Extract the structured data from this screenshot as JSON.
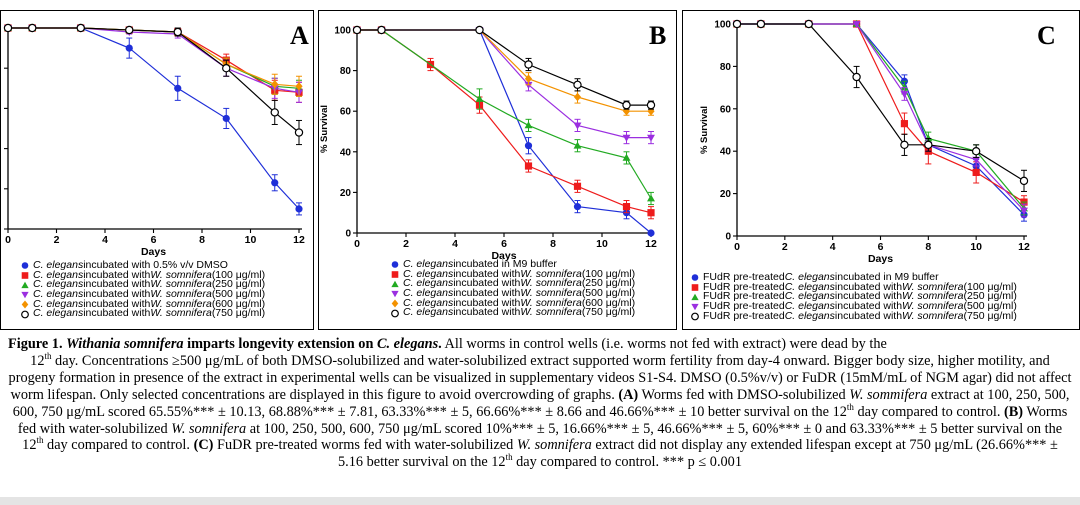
{
  "figure": {
    "chart_data": [
      {
        "type": "line",
        "panel": "A",
        "xlabel": "Days",
        "ylabel": "",
        "xlim": [
          0,
          12
        ],
        "ylim": [
          0,
          100
        ],
        "xticks": [
          "0",
          "2",
          "4",
          "6",
          "8",
          "10",
          "12"
        ],
        "yticks": [],
        "series": [
          {
            "name": "C. elegans incubated with 0.5% v/v DMSO",
            "color": "#1f2fd8",
            "marker": "circle",
            "x": [
              0,
              1,
              3,
              5,
              7,
              9,
              11,
              12
            ],
            "y": [
              100,
              100,
              100,
              90,
              70,
              55,
              23,
              10
            ],
            "err": [
              0,
              0,
              0,
              5,
              6,
              5,
              4,
              3
            ]
          },
          {
            "name": "C. elegans incubated with W. somnifera (100 μg/ml)",
            "color": "#ee1c1c",
            "marker": "square",
            "x": [
              0,
              1,
              3,
              5,
              7,
              9,
              11,
              12
            ],
            "y": [
              100,
              100,
              100,
              99,
              98,
              84,
              69,
              68
            ],
            "err": [
              0,
              0,
              0,
              1,
              2,
              3,
              5,
              5
            ]
          },
          {
            "name": "C. elegans incubated with W. somnifera (250 μg/ml)",
            "color": "#22aa22",
            "marker": "triangle",
            "x": [
              0,
              1,
              3,
              5,
              7,
              9,
              11,
              12
            ],
            "y": [
              100,
              100,
              100,
              99,
              98,
              82,
              71,
              70
            ],
            "err": [
              0,
              0,
              0,
              1,
              1,
              3,
              4,
              4
            ]
          },
          {
            "name": "C. elegans incubated with W. somnifera (500 μg/ml)",
            "color": "#9b2fe0",
            "marker": "tridown",
            "x": [
              0,
              1,
              3,
              5,
              7,
              9,
              11,
              12
            ],
            "y": [
              100,
              100,
              100,
              98,
              97,
              80,
              70,
              68
            ],
            "err": [
              0,
              0,
              0,
              1,
              2,
              4,
              5,
              5
            ]
          },
          {
            "name": "C. elegans incubated with W. somnifera (600 μg/ml)",
            "color": "#f39200",
            "marker": "diamond",
            "x": [
              0,
              1,
              3,
              5,
              7,
              9,
              11,
              12
            ],
            "y": [
              100,
              100,
              100,
              99,
              98,
              82,
              72,
              71
            ],
            "err": [
              0,
              0,
              0,
              1,
              1,
              3,
              5,
              5
            ]
          },
          {
            "name": "C. elegans incubated with W. somnifera (750 μg/ml)",
            "color": "#000000",
            "marker": "circle-open",
            "x": [
              0,
              1,
              3,
              5,
              7,
              9,
              11,
              12
            ],
            "y": [
              100,
              100,
              100,
              99,
              98,
              80,
              58,
              48
            ],
            "err": [
              0,
              0,
              0,
              1,
              2,
              4,
              6,
              6
            ]
          }
        ]
      },
      {
        "type": "line",
        "panel": "B",
        "xlabel": "Days",
        "ylabel": "% Survival",
        "xlim": [
          0,
          12
        ],
        "ylim": [
          0,
          100
        ],
        "xticks": [
          "0",
          "2",
          "4",
          "6",
          "8",
          "10",
          "12"
        ],
        "yticks": [
          "0",
          "20",
          "40",
          "60",
          "80",
          "100"
        ],
        "series": [
          {
            "name": "C. elegans incubated in M9 buffer",
            "color": "#1f2fd8",
            "marker": "circle",
            "x": [
              0,
              1,
              5,
              7,
              9,
              11,
              12
            ],
            "y": [
              100,
              100,
              100,
              43,
              13,
              10,
              0
            ],
            "err": [
              0,
              0,
              0,
              4,
              3,
              3,
              0
            ]
          },
          {
            "name": "C. elegans incubated with W. somnifera (100 μg/ml)",
            "color": "#ee1c1c",
            "marker": "square",
            "x": [
              0,
              1,
              3,
              5,
              7,
              9,
              11,
              12
            ],
            "y": [
              100,
              100,
              83,
              63,
              33,
              23,
              13,
              10
            ],
            "err": [
              0,
              0,
              3,
              4,
              3,
              3,
              3,
              3
            ]
          },
          {
            "name": "C. elegans incubated with W. somnifera (250 μg/ml)",
            "color": "#22aa22",
            "marker": "triangle",
            "x": [
              0,
              1,
              5,
              7,
              9,
              11,
              12
            ],
            "y": [
              100,
              100,
              66,
              53,
              43,
              37,
              17
            ],
            "err": [
              0,
              0,
              5,
              3,
              3,
              3,
              3
            ]
          },
          {
            "name": "C. elegans incubated with W. somnifera (500 μg/ml)",
            "color": "#9b2fe0",
            "marker": "tridown",
            "x": [
              0,
              1,
              5,
              7,
              9,
              11,
              12
            ],
            "y": [
              100,
              100,
              100,
              73,
              53,
              47,
              47
            ],
            "err": [
              0,
              0,
              0,
              3,
              3,
              3,
              3
            ]
          },
          {
            "name": "C. elegans incubated with W. somnifera (600 μg/ml)",
            "color": "#f39200",
            "marker": "diamond",
            "x": [
              0,
              1,
              5,
              7,
              9,
              11,
              12
            ],
            "y": [
              100,
              100,
              100,
              76,
              67,
              60,
              60
            ],
            "err": [
              0,
              0,
              0,
              3,
              3,
              2,
              2
            ]
          },
          {
            "name": "C. elegans incubated with W. somnifera (750 μg/ml)",
            "color": "#000000",
            "marker": "circle-open",
            "x": [
              0,
              1,
              5,
              7,
              9,
              11,
              12
            ],
            "y": [
              100,
              100,
              100,
              83,
              73,
              63,
              63
            ],
            "err": [
              0,
              0,
              0,
              3,
              3,
              2,
              2
            ]
          }
        ]
      },
      {
        "type": "line",
        "panel": "C",
        "xlabel": "Days",
        "ylabel": "% Survival",
        "xlim": [
          0,
          12
        ],
        "ylim": [
          0,
          100
        ],
        "xticks": [
          "0",
          "2",
          "4",
          "6",
          "8",
          "10",
          "12"
        ],
        "yticks": [
          "0",
          "20",
          "40",
          "60",
          "80",
          "100"
        ],
        "series": [
          {
            "name": "FUdR pre-treated C. elegans incubated in M9 buffer",
            "color": "#1f2fd8",
            "marker": "circle",
            "x": [
              0,
              1,
              3,
              5,
              7,
              8,
              10,
              12
            ],
            "y": [
              100,
              100,
              100,
              100,
              73,
              43,
              33,
              10
            ],
            "err": [
              0,
              0,
              0,
              0,
              3,
              3,
              3,
              3
            ]
          },
          {
            "name": "FUdR pre-treated C. elegans incubated with W. somnifera (100 μg/ml)",
            "color": "#ee1c1c",
            "marker": "square",
            "x": [
              0,
              1,
              3,
              5,
              7,
              8,
              10,
              12
            ],
            "y": [
              100,
              100,
              100,
              100,
              53,
              40,
              30,
              16
            ],
            "err": [
              0,
              0,
              0,
              0,
              5,
              6,
              5,
              3
            ]
          },
          {
            "name": "FUdR pre-treated C. elegans incubated with W. somnifera (250 μg/ml)",
            "color": "#22aa22",
            "marker": "triangle",
            "x": [
              0,
              1,
              3,
              5,
              7,
              8,
              10,
              12
            ],
            "y": [
              100,
              100,
              100,
              100,
              70,
              46,
              40,
              13
            ],
            "err": [
              0,
              0,
              0,
              0,
              3,
              3,
              3,
              3
            ]
          },
          {
            "name": "FUdR pre-treated C. elegans incubated with W. somnifera (500 μg/ml)",
            "color": "#9b2fe0",
            "marker": "tridown",
            "x": [
              0,
              1,
              3,
              5,
              7,
              8,
              10,
              12
            ],
            "y": [
              100,
              100,
              100,
              100,
              67,
              43,
              36,
              12
            ],
            "err": [
              0,
              0,
              0,
              0,
              3,
              3,
              3,
              3
            ]
          },
          {
            "name": "FUdR pre-treated C. elegans incubated with W. somnifera (750 μg/ml)",
            "color": "#000000",
            "marker": "circle-open",
            "x": [
              0,
              1,
              3,
              5,
              7,
              8,
              10,
              12
            ],
            "y": [
              100,
              100,
              100,
              75,
              43,
              43,
              40,
              26
            ],
            "err": [
              0,
              0,
              0,
              5,
              5,
              3,
              3,
              5
            ]
          }
        ]
      }
    ],
    "panel_letters": {
      "a": "A",
      "b": "B",
      "c": "C"
    },
    "legends": {
      "a": [
        {
          "pre": "",
          "sp": "C. elegans",
          "mid": " incubated with 0.5% v/v DMSO",
          "ws": "",
          "post": ""
        },
        {
          "pre": "",
          "sp": "C. elegans",
          "mid": " incubated with ",
          "ws": "W. somnifera",
          "post": " (100 μg/ml)"
        },
        {
          "pre": "",
          "sp": "C. elegans",
          "mid": " incubated with ",
          "ws": "W. somnifera",
          "post": " (250 μg/ml)"
        },
        {
          "pre": "",
          "sp": "C. elegans",
          "mid": " incubated with ",
          "ws": "W. somnifera",
          "post": " (500 μg/ml)"
        },
        {
          "pre": "",
          "sp": "C. elegans",
          "mid": " incubated with ",
          "ws": "W. somnifera",
          "post": " (600 μg/ml)"
        },
        {
          "pre": "",
          "sp": "C. elegans",
          "mid": " incubated with ",
          "ws": "W. somnifera",
          "post": " (750 μg/ml)"
        }
      ],
      "b": [
        {
          "pre": "",
          "sp": "C. elegans",
          "mid": " incubated in M9 buffer",
          "ws": "",
          "post": ""
        },
        {
          "pre": "",
          "sp": "C. elegans",
          "mid": " incubated with ",
          "ws": "W. somnifera",
          "post": " (100 μg/ml)"
        },
        {
          "pre": "",
          "sp": "C. elegans",
          "mid": " incubated with ",
          "ws": "W. somnifera",
          "post": " (250 μg/ml)"
        },
        {
          "pre": "",
          "sp": "C. elegans",
          "mid": " incubated with ",
          "ws": "W. somnifera",
          "post": " (500 μg/ml)"
        },
        {
          "pre": "",
          "sp": "C. elegans",
          "mid": " incubated with ",
          "ws": "W. somnifera",
          "post": " (600 μg/ml)"
        },
        {
          "pre": "",
          "sp": "C. elegans",
          "mid": " incubated with ",
          "ws": "W. somnifera",
          "post": " (750 μg/ml)"
        }
      ],
      "c": [
        {
          "pre": "FUdR pre-treated ",
          "sp": "C. elegans",
          "mid": " incubated in M9 buffer",
          "ws": "",
          "post": ""
        },
        {
          "pre": "FUdR pre-treated ",
          "sp": "C. elegans",
          "mid": " incubated with ",
          "ws": "W. somnifera",
          "post": " (100 μg/ml)"
        },
        {
          "pre": "FUdR pre-treated ",
          "sp": "C. elegans",
          "mid": " incubated with ",
          "ws": "W. somnifera",
          "post": " (250 μg/ml)"
        },
        {
          "pre": "FUdR pre-treated ",
          "sp": "C. elegans",
          "mid": " incubated with ",
          "ws": "W. somnifera",
          "post": " (500 μg/ml)"
        },
        {
          "pre": "FUdR pre-treated ",
          "sp": "C. elegans",
          "mid": " incubated with ",
          "ws": "W. somnifera",
          "post": " (750 μg/ml)"
        }
      ]
    }
  },
  "caption": {
    "fig_label": "Figure 1",
    "title_sep": ". ",
    "title_species": "Withania somnifera",
    "title_mid": " imparts longevity extension on ",
    "title_organism": "C. elegans",
    "title_end": ".",
    "s1": " All worms in control wells (i.e. worms not fed with extract) were dead by the",
    "s2_num": "12",
    "s2_sup": "th",
    "s2": " day. Concentrations ≥500 μg/mL of both DMSO-solubilized and water-solubilized extract supported worm fertility from day-4 onward. Bigger body size, higher motility, and progeny formation in presence of the extract in experimental wells can be visualized in supplementary videos S1-S4.  DMSO (0.5%v/v) or FuDR (15mM/mL of NGM agar) did not affect worm lifespan. Only selected concentrations are displayed in this figure to avoid overcrowding of graphs. ",
    "a_label": "(A)",
    "a1": " Worms fed with DMSO-solubilized ",
    "a_ws": "W. sommifera",
    "a2": " extract at 100, 250, 500, 600, 750 μg/mL scored 65.55%*** ± 10.13, 68.88%*** ± 7.81, 63.33%*** ± 5, 66.66%*** ± 8.66 and 46.66%*** ± 10 better survival on the 12",
    "a_sup": "th",
    "a3": " day compared to control. ",
    "b_label": "(B)",
    "b1": " Worms fed with water-solubilized ",
    "b_ws": "W. somnifera",
    "b2": " at 100, 250, 500, 600, 750 μg/mL scored 10%*** ± 5, 16.66%*** ± 5, 46.66%*** ± 5, 60%*** ± 0 and 63.33%*** ± 5 better survival on the 12",
    "b_sup": "th",
    "b3": " day compared to control. ",
    "c_label": "(C)",
    "c1": " FuDR pre-treated worms fed with water-solubilized ",
    "c_ws": "W. somnifera",
    "c2": " extract did not display any extended lifespan except at 750 μg/mL (26.66%*** ± 5.16 better survival on the 12",
    "c_sup": "th",
    "c3": " day compared to control. *** p ≤ 0.001"
  }
}
